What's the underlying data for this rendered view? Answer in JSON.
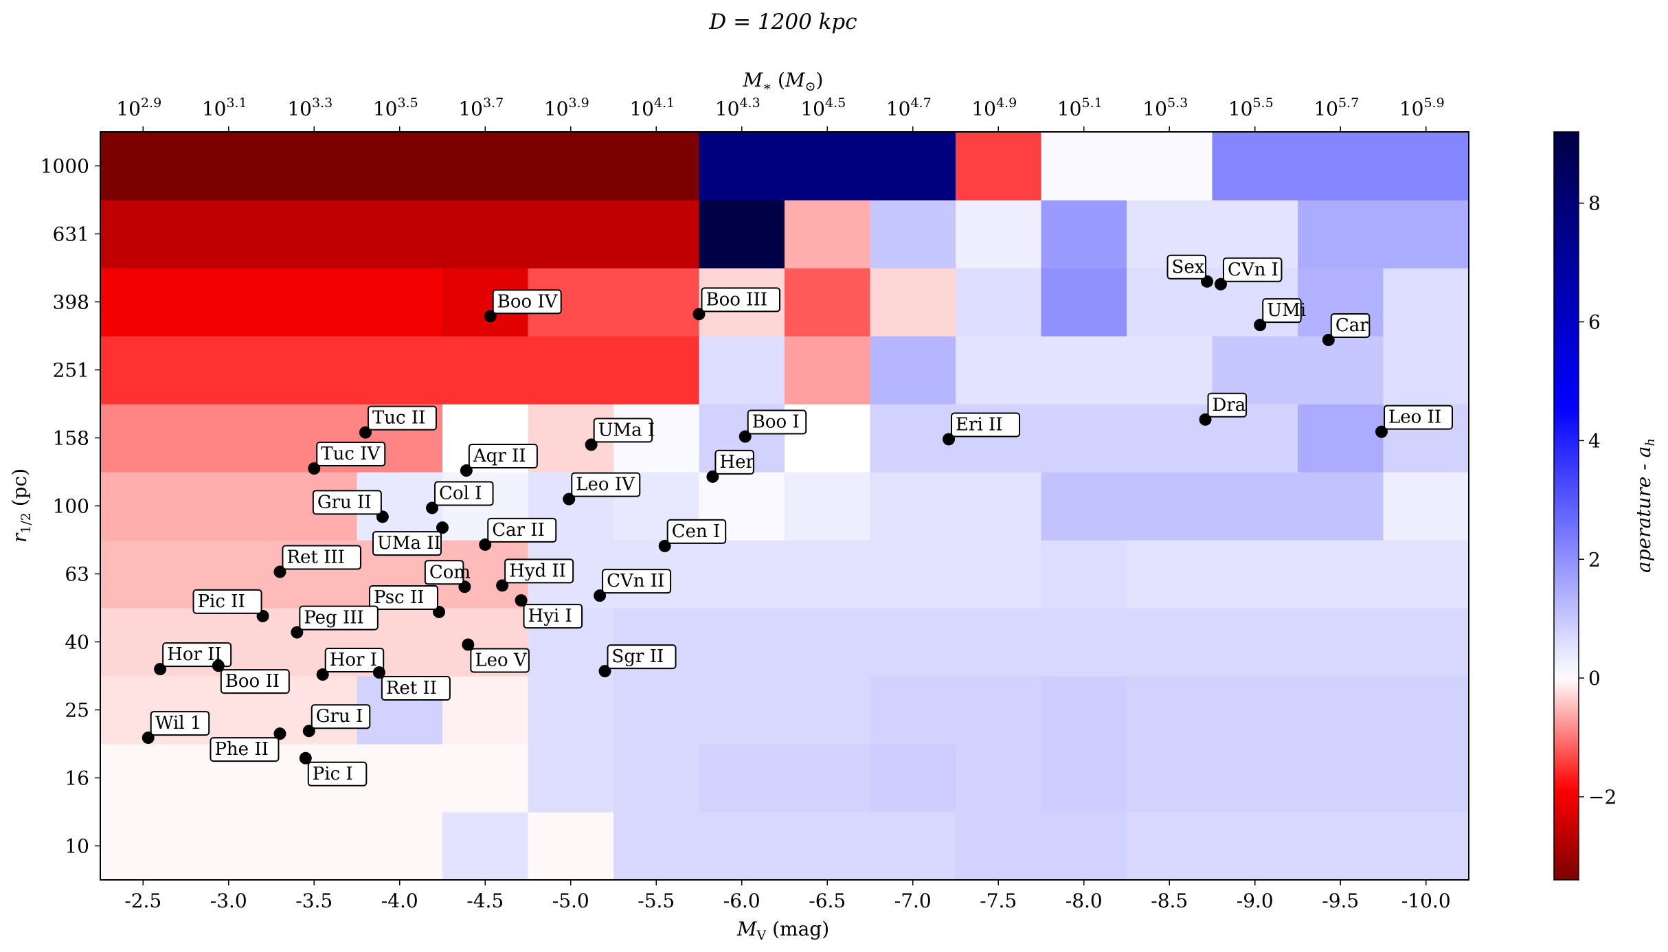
{
  "title": "D = 1200 kpc",
  "chart_data": {
    "type": "heatmap",
    "title": "D = 1200 kpc",
    "xlabel": "M_V (mag)",
    "ylabel": "r_1/2 (pc)",
    "top_xlabel": "M_* (M_⊙)",
    "colorbar_label": "aperature - a_h",
    "colorbar_range": [
      -3.4,
      9.2
    ],
    "colorbar_ticks": [
      "−2",
      "0",
      "2",
      "4",
      "6",
      "8"
    ],
    "colormap": "seismic_r",
    "x_range": [
      -2.25,
      -10.25
    ],
    "x_ticks": [
      -2.5,
      -3.0,
      -3.5,
      -4.0,
      -4.5,
      -5.0,
      -5.5,
      -6.0,
      -6.5,
      -7.0,
      -7.5,
      -8.0,
      -8.5,
      -9.0,
      -9.5,
      -10.0
    ],
    "x_tick_labels": [
      "-2.5",
      "-3.0",
      "-3.5",
      "-4.0",
      "-4.5",
      "-5.0",
      "-5.5",
      "-6.0",
      "-6.5",
      "-7.0",
      "-7.5",
      "-8.0",
      "-8.5",
      "-9.0",
      "-9.5",
      "-10.0"
    ],
    "x_bin_edges": [
      -2.25,
      -2.75,
      -3.25,
      -3.75,
      -4.25,
      -4.75,
      -5.25,
      -5.75,
      -6.25,
      -6.75,
      -7.25,
      -7.75,
      -8.25,
      -8.75,
      -9.25,
      -9.75,
      -10.25
    ],
    "top_x_tick_exponents": [
      "2.9",
      "3.1",
      "3.3",
      "3.5",
      "3.7",
      "3.9",
      "4.1",
      "4.3",
      "4.5",
      "4.7",
      "4.9",
      "5.1",
      "5.3",
      "5.5",
      "5.7",
      "5.9"
    ],
    "y_scale": "log",
    "y_ticks": [
      "10",
      "16",
      "25",
      "40",
      "63",
      "100",
      "158",
      "251",
      "398",
      "631",
      "1000"
    ],
    "y_range_index": [
      -0.5,
      10.5
    ],
    "rows_bottom_to_top": [
      [
        -0.05,
        -0.05,
        -0.05,
        -0.05,
        0.5,
        -0.05,
        0.7,
        0.7,
        0.7,
        0.7,
        0.8,
        0.8,
        0.7,
        0.7,
        0.7,
        0.7
      ],
      [
        -0.05,
        -0.05,
        -0.05,
        -0.05,
        -0.05,
        0.6,
        0.7,
        0.8,
        0.8,
        0.9,
        0.8,
        0.9,
        0.8,
        0.8,
        0.8,
        0.8
      ],
      [
        -0.2,
        -0.2,
        -0.2,
        0.8,
        -0.1,
        0.6,
        0.7,
        0.7,
        0.7,
        0.8,
        0.8,
        0.9,
        0.8,
        0.8,
        0.8,
        0.8
      ],
      [
        -0.3,
        -0.3,
        -0.3,
        -0.3,
        -0.3,
        0.6,
        0.7,
        0.7,
        0.7,
        0.7,
        0.7,
        0.7,
        0.7,
        0.7,
        0.7,
        0.7
      ],
      [
        -0.5,
        -0.5,
        -0.5,
        -0.5,
        -0.5,
        0.5,
        0.5,
        0.5,
        0.5,
        0.5,
        0.5,
        0.6,
        0.5,
        0.5,
        0.5,
        0.5
      ],
      [
        -0.6,
        -0.6,
        -0.6,
        0.4,
        0.2,
        0.5,
        0.4,
        0.1,
        0.3,
        0.5,
        0.5,
        1.1,
        1.1,
        1.1,
        1.1,
        0.3
      ],
      [
        -0.9,
        -0.9,
        -0.9,
        -0.9,
        0.0,
        -0.3,
        0.1,
        0.8,
        0.0,
        0.8,
        0.8,
        0.8,
        0.8,
        0.8,
        1.5,
        0.8
      ],
      [
        -1.5,
        -1.5,
        -1.5,
        -1.5,
        -1.5,
        -1.5,
        -1.5,
        0.6,
        -0.7,
        1.3,
        0.5,
        0.5,
        0.5,
        1.0,
        1.0,
        0.6
      ],
      [
        -2.0,
        -2.0,
        -2.0,
        -2.0,
        -2.2,
        -1.3,
        -1.3,
        -0.3,
        -1.2,
        -0.3,
        0.6,
        2.0,
        0.6,
        0.6,
        1.4,
        0.6
      ],
      [
        -2.6,
        -2.6,
        -2.6,
        -2.6,
        -2.6,
        -2.6,
        -2.6,
        9.2,
        -0.6,
        1.0,
        0.3,
        1.8,
        0.5,
        0.5,
        1.5,
        1.5
      ],
      [
        -3.4,
        -3.4,
        -3.4,
        -3.4,
        -3.4,
        -3.4,
        -3.4,
        7.8,
        7.8,
        7.8,
        -1.4,
        0.1,
        0.1,
        2.2,
        2.2,
        2.2
      ]
    ],
    "galaxies": [
      {
        "name": "Boo IV",
        "mv": -4.53,
        "r_index": 7.79
      },
      {
        "name": "Boo III",
        "mv": -5.75,
        "r_index": 7.82
      },
      {
        "name": "Tuc II",
        "mv": -3.8,
        "r_index": 6.08
      },
      {
        "name": "Tuc IV",
        "mv": -3.5,
        "r_index": 5.55
      },
      {
        "name": "Aqr II",
        "mv": -4.39,
        "r_index": 5.52
      },
      {
        "name": "UMa I",
        "mv": -5.12,
        "r_index": 5.9
      },
      {
        "name": "Boo I",
        "mv": -6.02,
        "r_index": 6.02
      },
      {
        "name": "Her",
        "mv": -5.83,
        "r_index": 5.43
      },
      {
        "name": "Eri II",
        "mv": -7.21,
        "r_index": 5.98
      },
      {
        "name": "Leo IV",
        "mv": -4.99,
        "r_index": 5.1
      },
      {
        "name": "Col I",
        "mv": -4.19,
        "r_index": 4.97
      },
      {
        "name": "Gru II",
        "mv": -3.9,
        "r_index": 4.84
      },
      {
        "name": "UMa II",
        "mv": -4.25,
        "r_index": 4.68
      },
      {
        "name": "Car II",
        "mv": -4.5,
        "r_index": 4.43
      },
      {
        "name": "Cen I",
        "mv": -5.55,
        "r_index": 4.41
      },
      {
        "name": "Ret III",
        "mv": -3.3,
        "r_index": 4.03
      },
      {
        "name": "Com",
        "mv": -4.38,
        "r_index": 3.81
      },
      {
        "name": "Hyd II",
        "mv": -4.6,
        "r_index": 3.83
      },
      {
        "name": "CVn II",
        "mv": -5.17,
        "r_index": 3.68
      },
      {
        "name": "Psc II",
        "mv": -4.23,
        "r_index": 3.44
      },
      {
        "name": "Hyi I",
        "mv": -4.71,
        "r_index": 3.61
      },
      {
        "name": "Pic II",
        "mv": -3.2,
        "r_index": 3.38
      },
      {
        "name": "Peg III",
        "mv": -3.4,
        "r_index": 3.14
      },
      {
        "name": "Leo V",
        "mv": -4.4,
        "r_index": 2.96
      },
      {
        "name": "Hor II",
        "mv": -2.6,
        "r_index": 2.6
      },
      {
        "name": "Boo II",
        "mv": -2.94,
        "r_index": 2.65
      },
      {
        "name": "Hor I",
        "mv": -3.55,
        "r_index": 2.52
      },
      {
        "name": "Ret II",
        "mv": -3.88,
        "r_index": 2.55
      },
      {
        "name": "Sgr II",
        "mv": -5.2,
        "r_index": 2.57
      },
      {
        "name": "Wil 1",
        "mv": -2.53,
        "r_index": 1.59
      },
      {
        "name": "Phe II",
        "mv": -3.3,
        "r_index": 1.65
      },
      {
        "name": "Gru I",
        "mv": -3.47,
        "r_index": 1.69
      },
      {
        "name": "Pic I",
        "mv": -3.45,
        "r_index": 1.29
      },
      {
        "name": "Sex",
        "mv": -8.72,
        "r_index": 8.3
      },
      {
        "name": "CVn I",
        "mv": -8.8,
        "r_index": 8.26
      },
      {
        "name": "UMi",
        "mv": -9.03,
        "r_index": 7.66
      },
      {
        "name": "Car",
        "mv": -9.43,
        "r_index": 7.44
      },
      {
        "name": "Dra",
        "mv": -8.71,
        "r_index": 6.27
      },
      {
        "name": "Leo II",
        "mv": -9.74,
        "r_index": 6.09
      }
    ]
  }
}
